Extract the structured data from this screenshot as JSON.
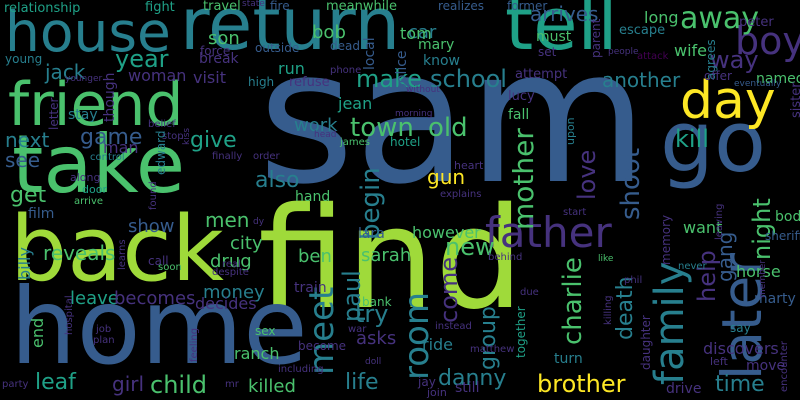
{
  "background": "#000000",
  "palette": {
    "yellow": "#fde725",
    "lime": "#9fda3a",
    "green": "#4ac16d",
    "teal_green": "#1fa187",
    "teal": "#277f8e",
    "blue": "#365c8d",
    "indigo": "#46327e",
    "purple": "#440154"
  },
  "words": [
    {
      "text": "sam",
      "color": "blue"
    },
    {
      "text": "find",
      "color": "lime"
    },
    {
      "text": "home",
      "color": "blue"
    },
    {
      "text": "back",
      "color": "lime"
    },
    {
      "text": "take",
      "color": "green"
    },
    {
      "text": "return",
      "color": "teal"
    },
    {
      "text": "tell",
      "color": "teal_green"
    },
    {
      "text": "friend",
      "color": "green"
    },
    {
      "text": "house",
      "color": "teal"
    },
    {
      "text": "go",
      "color": "blue"
    },
    {
      "text": "later",
      "color": "blue"
    },
    {
      "text": "day",
      "color": "yellow"
    },
    {
      "text": "family",
      "color": "teal"
    },
    {
      "text": "father",
      "color": "indigo"
    },
    {
      "text": "boy",
      "color": "indigo"
    },
    {
      "text": "away",
      "color": "green"
    },
    {
      "text": "meet",
      "color": "teal"
    },
    {
      "text": "room",
      "color": "teal"
    },
    {
      "text": "way",
      "color": "indigo"
    },
    {
      "text": "town",
      "color": "green"
    },
    {
      "text": "old",
      "color": "green"
    },
    {
      "text": "school",
      "color": "teal"
    },
    {
      "text": "make",
      "color": "teal_green"
    },
    {
      "text": "jack",
      "color": "teal"
    },
    {
      "text": "year",
      "color": "teal_green"
    },
    {
      "text": "next",
      "color": "teal"
    },
    {
      "text": "game",
      "color": "blue"
    },
    {
      "text": "give",
      "color": "teal_green"
    },
    {
      "text": "see",
      "color": "blue"
    },
    {
      "text": "get",
      "color": "green"
    },
    {
      "text": "also",
      "color": "teal"
    },
    {
      "text": "men",
      "color": "green"
    },
    {
      "text": "new",
      "color": "green"
    },
    {
      "text": "mother",
      "color": "green"
    },
    {
      "text": "begin",
      "color": "teal"
    },
    {
      "text": "love",
      "color": "indigo"
    },
    {
      "text": "shoot",
      "color": "blue"
    },
    {
      "text": "kill",
      "color": "teal_green"
    },
    {
      "text": "night",
      "color": "green"
    },
    {
      "text": "help",
      "color": "indigo"
    },
    {
      "text": "gang",
      "color": "blue"
    },
    {
      "text": "paul",
      "color": "teal"
    },
    {
      "text": "try",
      "color": "teal"
    },
    {
      "text": "come",
      "color": "indigo"
    },
    {
      "text": "group",
      "color": "teal"
    },
    {
      "text": "charlie",
      "color": "green"
    },
    {
      "text": "death",
      "color": "teal"
    },
    {
      "text": "time",
      "color": "teal"
    },
    {
      "text": "brother",
      "color": "yellow"
    },
    {
      "text": "danny",
      "color": "teal"
    },
    {
      "text": "life",
      "color": "teal"
    },
    {
      "text": "child",
      "color": "green"
    },
    {
      "text": "leaf",
      "color": "teal_green"
    },
    {
      "text": "girl",
      "color": "indigo"
    },
    {
      "text": "killed",
      "color": "green"
    },
    {
      "text": "leave",
      "color": "teal_green"
    },
    {
      "text": "becomes",
      "color": "indigo"
    },
    {
      "text": "money",
      "color": "teal"
    },
    {
      "text": "reveals",
      "color": "green"
    },
    {
      "text": "show",
      "color": "blue"
    },
    {
      "text": "city",
      "color": "green"
    },
    {
      "text": "drug",
      "color": "green"
    },
    {
      "text": "ben",
      "color": "green"
    },
    {
      "text": "sarah",
      "color": "green"
    },
    {
      "text": "asks",
      "color": "indigo"
    },
    {
      "text": "woman",
      "color": "indigo"
    },
    {
      "text": "visit",
      "color": "indigo"
    },
    {
      "text": "run",
      "color": "teal_green"
    },
    {
      "text": "son",
      "color": "green"
    },
    {
      "text": "bob",
      "color": "green"
    },
    {
      "text": "car",
      "color": "teal"
    },
    {
      "text": "tom",
      "color": "green"
    },
    {
      "text": "mary",
      "color": "green"
    },
    {
      "text": "jean",
      "color": "teal_green"
    },
    {
      "text": "work",
      "color": "teal"
    },
    {
      "text": "gun",
      "color": "yellow"
    },
    {
      "text": "arrives",
      "color": "blue"
    },
    {
      "text": "another",
      "color": "teal"
    },
    {
      "text": "named",
      "color": "green"
    },
    {
      "text": "long",
      "color": "green"
    },
    {
      "text": "relationship",
      "color": "teal_green"
    },
    {
      "text": "fight",
      "color": "teal_green"
    },
    {
      "text": "travel",
      "color": "green"
    },
    {
      "text": "meanwhile",
      "color": "green"
    },
    {
      "text": "fire",
      "color": "blue"
    },
    {
      "text": "realizes",
      "color": "blue"
    },
    {
      "text": "former",
      "color": "blue"
    },
    {
      "text": "young",
      "color": "teal"
    },
    {
      "text": "refuse",
      "color": "indigo"
    },
    {
      "text": "hotel",
      "color": "teal_green"
    },
    {
      "text": "lucy",
      "color": "indigo"
    },
    {
      "text": "film",
      "color": "blue"
    },
    {
      "text": "end",
      "color": "green"
    },
    {
      "text": "billy",
      "color": "teal"
    },
    {
      "text": "ranch",
      "color": "green"
    },
    {
      "text": "decides",
      "color": "indigo"
    },
    {
      "text": "ride",
      "color": "teal"
    },
    {
      "text": "turn",
      "color": "teal"
    },
    {
      "text": "discovers",
      "color": "indigo"
    },
    {
      "text": "horse",
      "color": "green"
    },
    {
      "text": "want",
      "color": "green"
    },
    {
      "text": "body",
      "color": "green"
    },
    {
      "text": "marty",
      "color": "blue"
    },
    {
      "text": "move",
      "color": "indigo"
    },
    {
      "text": "drive",
      "color": "indigo"
    },
    {
      "text": "however",
      "color": "green"
    },
    {
      "text": "train",
      "color": "indigo"
    },
    {
      "text": "lara",
      "color": "blue"
    },
    {
      "text": "wife",
      "color": "green"
    },
    {
      "text": "know",
      "color": "teal"
    },
    {
      "text": "escape",
      "color": "teal"
    },
    {
      "text": "police",
      "color": "blue"
    },
    {
      "text": "local",
      "color": "blue"
    },
    {
      "text": "dead",
      "color": "blue"
    },
    {
      "text": "outside",
      "color": "blue"
    },
    {
      "text": "force",
      "color": "indigo"
    },
    {
      "text": "high",
      "color": "teal"
    },
    {
      "text": "phone",
      "color": "indigo"
    },
    {
      "text": "attempt",
      "color": "indigo"
    },
    {
      "text": "must",
      "color": "green"
    },
    {
      "text": "set",
      "color": "indigo"
    },
    {
      "text": "parent",
      "color": "indigo"
    },
    {
      "text": "peter",
      "color": "indigo"
    },
    {
      "text": "agrees",
      "color": "teal"
    },
    {
      "text": "offer",
      "color": "indigo"
    },
    {
      "text": "eventually",
      "color": "blue"
    },
    {
      "text": "sister",
      "color": "indigo"
    },
    {
      "text": "letter",
      "color": "indigo"
    },
    {
      "text": "stay",
      "color": "teal"
    },
    {
      "text": "though",
      "color": "indigo"
    },
    {
      "text": "man",
      "color": "indigo"
    },
    {
      "text": "belief",
      "color": "indigo"
    },
    {
      "text": "break",
      "color": "indigo"
    },
    {
      "text": "stop",
      "color": "indigo"
    },
    {
      "text": "kiss",
      "color": "indigo"
    },
    {
      "text": "finally",
      "color": "indigo"
    },
    {
      "text": "order",
      "color": "indigo"
    },
    {
      "text": "control",
      "color": "teal"
    },
    {
      "text": "james",
      "color": "green"
    },
    {
      "text": "heart",
      "color": "indigo"
    },
    {
      "text": "explains",
      "color": "indigo"
    },
    {
      "text": "along",
      "color": "indigo"
    },
    {
      "text": "door",
      "color": "teal_green"
    },
    {
      "text": "arrive",
      "color": "green"
    },
    {
      "text": "edward",
      "color": "teal"
    },
    {
      "text": "found",
      "color": "indigo"
    },
    {
      "text": "hand",
      "color": "green"
    },
    {
      "text": "fall",
      "color": "green"
    },
    {
      "text": "upon",
      "color": "teal"
    },
    {
      "text": "start",
      "color": "indigo"
    },
    {
      "text": "sheriff",
      "color": "blue"
    },
    {
      "text": "leaving",
      "color": "indigo"
    },
    {
      "text": "memory",
      "color": "indigo"
    },
    {
      "text": "call",
      "color": "indigo"
    },
    {
      "text": "soon",
      "color": "green"
    },
    {
      "text": "despite",
      "color": "indigo"
    },
    {
      "text": "real",
      "color": "indigo"
    },
    {
      "text": "behind",
      "color": "indigo"
    },
    {
      "text": "like",
      "color": "green"
    },
    {
      "text": "never",
      "color": "teal"
    },
    {
      "text": "member",
      "color": "indigo"
    },
    {
      "text": "say",
      "color": "teal"
    },
    {
      "text": "left",
      "color": "indigo"
    },
    {
      "text": "encounter",
      "color": "indigo"
    },
    {
      "text": "daughter",
      "color": "indigo"
    },
    {
      "text": "killing",
      "color": "indigo"
    },
    {
      "text": "phil",
      "color": "indigo"
    },
    {
      "text": "due",
      "color": "indigo"
    },
    {
      "text": "together",
      "color": "teal_green"
    },
    {
      "text": "instead",
      "color": "indigo"
    },
    {
      "text": "matthew",
      "color": "indigo"
    },
    {
      "text": "bank",
      "color": "green"
    },
    {
      "text": "war",
      "color": "indigo"
    },
    {
      "text": "doll",
      "color": "indigo"
    },
    {
      "text": "jay",
      "color": "indigo"
    },
    {
      "text": "sex",
      "color": "green"
    },
    {
      "text": "become",
      "color": "indigo"
    },
    {
      "text": "including",
      "color": "indigo"
    },
    {
      "text": "mr",
      "color": "indigo"
    },
    {
      "text": "feeling",
      "color": "indigo"
    },
    {
      "text": "plan",
      "color": "indigo"
    },
    {
      "text": "job",
      "color": "indigo"
    },
    {
      "text": "hospital",
      "color": "indigo"
    },
    {
      "text": "party",
      "color": "indigo"
    },
    {
      "text": "learns",
      "color": "indigo"
    },
    {
      "text": "still",
      "color": "indigo"
    },
    {
      "text": "join",
      "color": "indigo"
    },
    {
      "text": "state",
      "color": "indigo"
    },
    {
      "text": "younger",
      "color": "indigo"
    },
    {
      "text": "morning",
      "color": "indigo"
    },
    {
      "text": "without",
      "color": "indigo"
    },
    {
      "text": "head",
      "color": "indigo"
    },
    {
      "text": "attack",
      "color": "purple"
    },
    {
      "text": "people",
      "color": "indigo"
    },
    {
      "text": "dy",
      "color": "indigo"
    }
  ]
}
